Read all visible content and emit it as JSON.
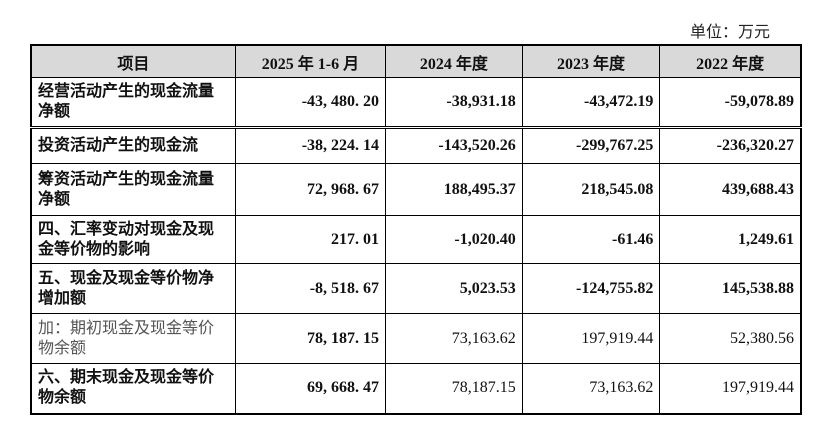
{
  "unit": "单位：万元",
  "table": {
    "header": [
      "项目",
      "2025 年 1-6 月",
      "2024 年度",
      "2023 年度",
      "2022 年度"
    ],
    "rows": [
      [
        "经营活动产生的现金流量净额",
        "-43, 480. 20",
        "-38,931.18",
        "-43,472.19",
        "-59,078.89"
      ],
      [
        "投资活动产生的现金流",
        "-38, 224. 14",
        "-143,520.26",
        "-299,767.25",
        "-236,320.27"
      ],
      [
        "筹资活动产生的现金流量净额",
        "72, 968. 67",
        "188,495.37",
        "218,545.08",
        "439,688.43"
      ],
      [
        "四、汇率变动对现金及现金等价物的影响",
        "217. 01",
        "-1,020.40",
        "-61.46",
        "1,249.61"
      ],
      [
        "五、现金及现金等价物净增加额",
        "-8, 518. 67",
        "5,023.53",
        "-124,755.82",
        "145,538.88"
      ],
      [
        "加：期初现金及现金等价物余额",
        "78, 187. 15",
        "73,163.62",
        "197,919.44",
        "52,380.56"
      ],
      [
        "六、期末现金及现金等价物余额",
        "69, 668. 47",
        "78,187.15",
        "73,163.62",
        "197,919.44"
      ]
    ]
  }
}
